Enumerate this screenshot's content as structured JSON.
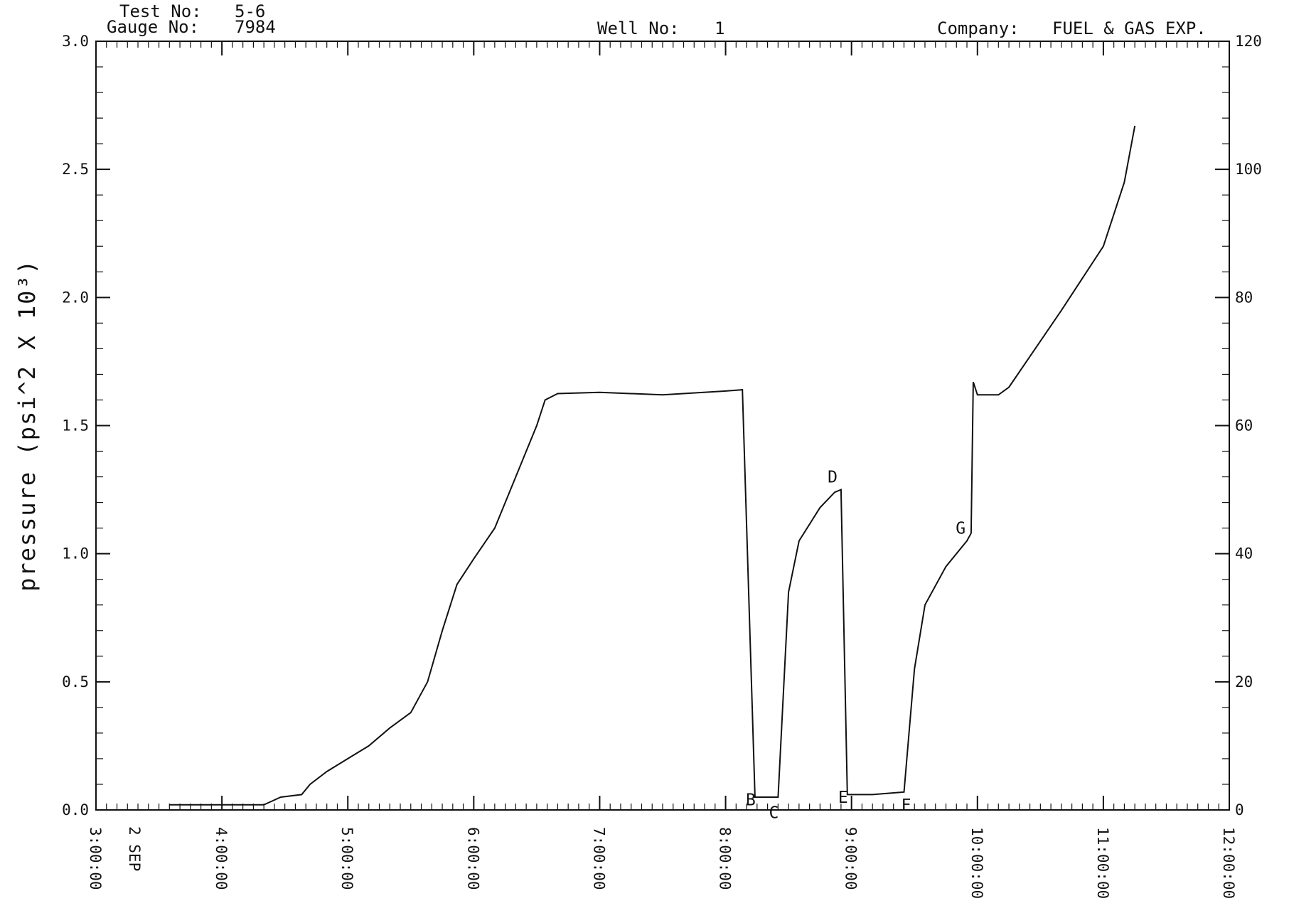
{
  "header": {
    "test_no_label": "Test No:",
    "test_no_value": "5-6",
    "gauge_no_label": "Gauge No:",
    "gauge_no_value": "7984",
    "well_no_label": "Well No:",
    "well_no_value": "1",
    "company_label": "Company:",
    "company_value": "FUEL & GAS EXP."
  },
  "chart_data": {
    "type": "line",
    "title": "",
    "ylabel": "pressure (psi^2 X 10³)",
    "y2label": "",
    "date_label": "2 SEP",
    "xlim": [
      "3:00:00",
      "12:00:00"
    ],
    "ylim": [
      0,
      3.0
    ],
    "y2lim": [
      0,
      120
    ],
    "x_ticks": [
      "3:00:00",
      "4:00:00",
      "5:00:00",
      "6:00:00",
      "7:00:00",
      "8:00:00",
      "9:00:00",
      "10:00:00",
      "11:00:00",
      "12:00:00"
    ],
    "y_ticks": [
      "0.0",
      "0.5",
      "1.0",
      "1.5",
      "2.0",
      "2.5",
      "3.0"
    ],
    "y2_ticks": [
      "0",
      "20",
      "40",
      "60",
      "80",
      "100",
      "120"
    ],
    "grid": false,
    "series": [
      {
        "x": [
          "3:35",
          "4:20",
          "4:28",
          "4:38",
          "4:42",
          "4:50",
          "5:00",
          "5:10",
          "5:20",
          "5:30",
          "5:38",
          "5:45",
          "5:52",
          "6:00",
          "6:10",
          "6:20",
          "6:30",
          "6:34",
          "6:40",
          "7:00",
          "7:30",
          "8:00",
          "8:08",
          "8:14",
          "8:20",
          "8:22",
          "8:25",
          "8:30",
          "8:35",
          "8:45",
          "8:52",
          "8:55",
          "8:58",
          "9:00",
          "9:10",
          "9:25",
          "9:30",
          "9:35",
          "9:45",
          "9:55",
          "9:57",
          "9:58",
          "10:00",
          "10:10",
          "10:15",
          "10:40",
          "11:00",
          "11:10",
          "11:15"
        ],
        "y": [
          0.02,
          0.02,
          0.05,
          0.06,
          0.1,
          0.15,
          0.2,
          0.25,
          0.32,
          0.38,
          0.5,
          0.7,
          0.88,
          0.98,
          1.1,
          1.3,
          1.5,
          1.6,
          1.625,
          1.63,
          1.62,
          1.635,
          1.64,
          0.05,
          0.05,
          0.05,
          0.05,
          0.85,
          1.05,
          1.18,
          1.24,
          1.25,
          0.06,
          0.06,
          0.06,
          0.07,
          0.55,
          0.8,
          0.95,
          1.05,
          1.08,
          1.67,
          1.62,
          1.62,
          1.65,
          1.95,
          2.2,
          2.45,
          2.67
        ]
      }
    ],
    "annotations": [
      {
        "text": "B",
        "x": "8:12",
        "y": 0.04
      },
      {
        "text": "C",
        "x": "8:23",
        "y": -0.01
      },
      {
        "text": "D",
        "x": "8:51",
        "y": 1.3
      },
      {
        "text": "E",
        "x": "8:56",
        "y": 0.05
      },
      {
        "text": "F",
        "x": "9:26",
        "y": 0.02
      },
      {
        "text": "G",
        "x": "9:52",
        "y": 1.1
      }
    ]
  }
}
